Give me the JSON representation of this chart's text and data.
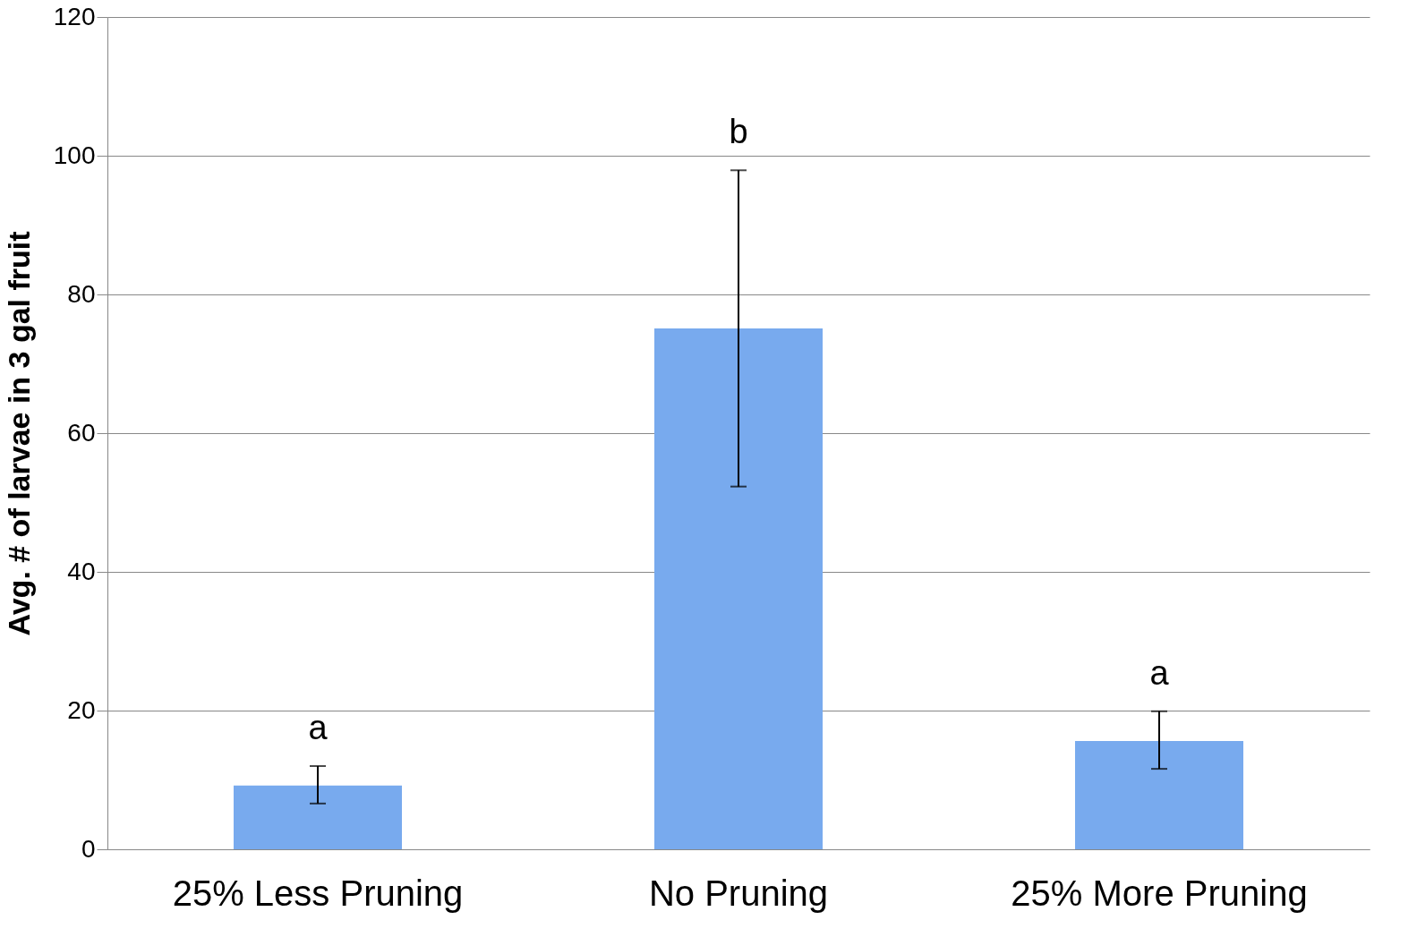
{
  "chart_data": {
    "type": "bar",
    "ylabel": "Avg. # of larvae in 3 gal fruit",
    "categories": [
      "25% Less Pruning",
      "No Pruning",
      "25% More Pruning"
    ],
    "values": [
      9.2,
      75.1,
      15.6
    ],
    "errors": [
      [
        6.6,
        12.0
      ],
      [
        52.3,
        97.9
      ],
      [
        11.6,
        19.9
      ]
    ],
    "color": "#78aaee",
    "ylim": [
      0,
      120
    ],
    "yticks": [
      0,
      20,
      40,
      60,
      80,
      100,
      120
    ],
    "grid": "y",
    "annotations": [
      "a",
      "b",
      "a"
    ]
  }
}
